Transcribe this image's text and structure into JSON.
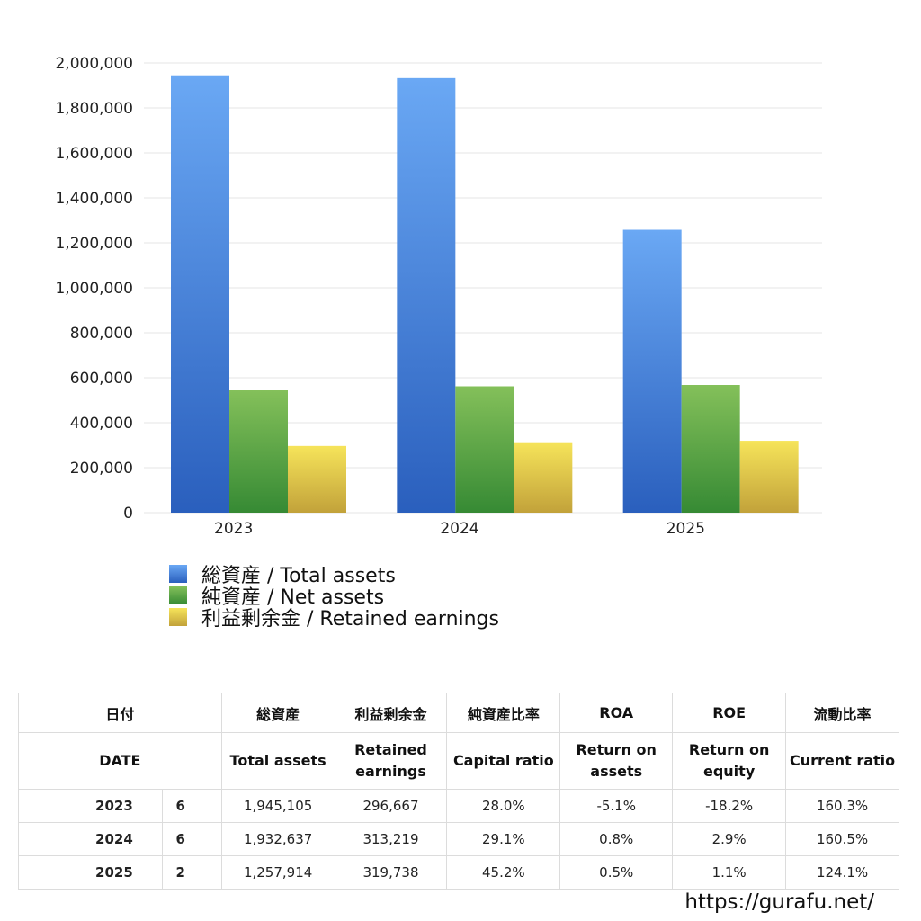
{
  "colors": {
    "total_assets": [
      "#6aa8f4",
      "#2a5fbd"
    ],
    "net_assets": [
      "#84c05a",
      "#368a34"
    ],
    "retained_earnings": [
      "#f6e45a",
      "#c2a23a"
    ],
    "negative_value": "#d03a2a",
    "grid": "#e6e6e6"
  },
  "chart_data": {
    "type": "bar",
    "categories": [
      "2023",
      "2024",
      "2025"
    ],
    "series": [
      {
        "name": "総資産 / Total assets",
        "values": [
          1945105,
          1932637,
          1257914
        ]
      },
      {
        "name": "純資産 / Net assets",
        "values": [
          544000,
          562000,
          568000
        ]
      },
      {
        "name": "利益剰余金 / Retained earnings",
        "values": [
          296667,
          313219,
          319738
        ]
      }
    ],
    "ylim": [
      0,
      2000000
    ],
    "yticks": [
      "0",
      "200,000",
      "400,000",
      "600,000",
      "800,000",
      "1,000,000",
      "1,200,000",
      "1,400,000",
      "1,600,000",
      "1,800,000",
      "2,000,000"
    ],
    "grid": true,
    "legend_position": "bottom-left"
  },
  "table": {
    "header_jp": [
      "日付",
      "総資産",
      "利益剰余金",
      "純資産比率",
      "ROA",
      "ROE",
      "流動比率"
    ],
    "header_en": [
      "DATE",
      "Total assets",
      "Retained earnings",
      "Capital ratio",
      "Return on assets",
      "Return on equity",
      "Current ratio"
    ],
    "rows": [
      {
        "year": "2023",
        "months": "6",
        "total_assets": "1,945,105",
        "retained_earnings": "296,667",
        "capital_ratio": "28.0%",
        "roa": "-5.1%",
        "roe": "-18.2%",
        "current_ratio": "160.3%"
      },
      {
        "year": "2024",
        "months": "6",
        "total_assets": "1,932,637",
        "retained_earnings": "313,219",
        "capital_ratio": "29.1%",
        "roa": "0.8%",
        "roe": "2.9%",
        "current_ratio": "160.5%"
      },
      {
        "year": "2025",
        "months": "2",
        "total_assets": "1,257,914",
        "retained_earnings": "319,738",
        "capital_ratio": "45.2%",
        "roa": "0.5%",
        "roe": "1.1%",
        "current_ratio": "124.1%"
      }
    ]
  },
  "footer": {
    "url": "https://gurafu.net/"
  }
}
